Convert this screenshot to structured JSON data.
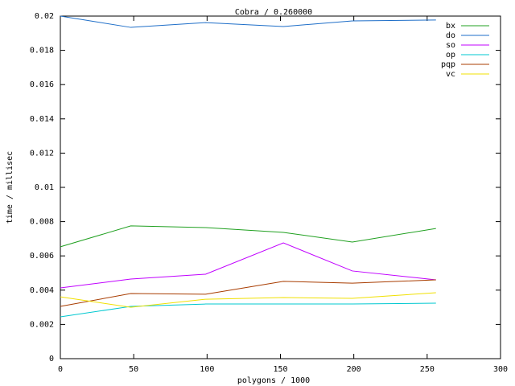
{
  "chart_data": {
    "type": "line",
    "title": "Cobra / 0.260000",
    "xlabel": "polygons / 1000",
    "ylabel": "time / millisec",
    "x": [
      0,
      48,
      99,
      152,
      199,
      256
    ],
    "series": [
      {
        "name": "bx",
        "color": "#20a020",
        "values": [
          0.00653,
          0.00775,
          0.00765,
          0.00737,
          0.00681,
          0.0076
        ]
      },
      {
        "name": "do",
        "color": "#1e6ec8",
        "values": [
          0.02,
          0.01934,
          0.01962,
          0.01939,
          0.01972,
          0.01977
        ]
      },
      {
        "name": "so",
        "color": "#c000ff",
        "values": [
          0.00413,
          0.00465,
          0.00493,
          0.00676,
          0.00512,
          0.0046
        ]
      },
      {
        "name": "op",
        "color": "#00c8d0",
        "values": [
          0.00244,
          0.00305,
          0.00319,
          0.00319,
          0.00319,
          0.00324
        ]
      },
      {
        "name": "pqp",
        "color": "#a83c00",
        "values": [
          0.00305,
          0.0038,
          0.00376,
          0.00451,
          0.00441,
          0.0046
        ]
      },
      {
        "name": "vc",
        "color": "#f0e000",
        "values": [
          0.00361,
          0.003,
          0.00347,
          0.00357,
          0.00352,
          0.00385
        ]
      }
    ],
    "xlim": [
      0,
      300
    ],
    "xticks": [
      0,
      50,
      100,
      150,
      200,
      250,
      300
    ],
    "ylim": [
      0,
      0.02
    ],
    "yticks": [
      0,
      0.002,
      0.004,
      0.006,
      0.008,
      0.01,
      0.012,
      0.014,
      0.016,
      0.018,
      0.02
    ],
    "legend": "top-right",
    "grid": false
  }
}
